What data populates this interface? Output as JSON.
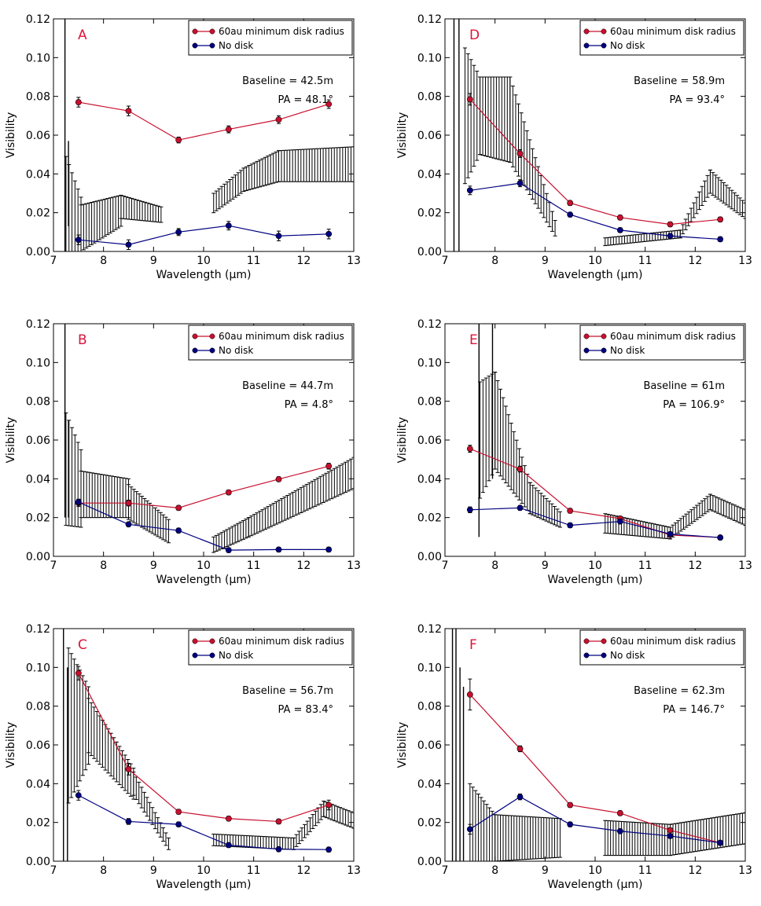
{
  "figure": {
    "xlabel": "Wavelength (μm)",
    "ylabel": "Visibility",
    "xlim": [
      7,
      13
    ],
    "ylim": [
      0,
      0.12
    ],
    "x_ticks": [
      "7",
      "8",
      "9",
      "10",
      "11",
      "12",
      "13"
    ],
    "y_ticks": [
      "0.00",
      "0.02",
      "0.04",
      "0.06",
      "0.08",
      "0.10",
      "0.12"
    ],
    "legend": [
      "60au minimum disk radius",
      "No disk"
    ],
    "colors": {
      "disk": "#c8102e",
      "nodisk": "#000080",
      "obs": "#000000",
      "letter": "#dc143c"
    }
  },
  "chart_data": [
    {
      "type": "line",
      "panel": "A",
      "baseline": "Baseline = 42.5m",
      "pa": "PA = 48.1°",
      "xlim": [
        7,
        13
      ],
      "ylim": [
        0,
        0.12
      ],
      "xlabel": "Wavelength (μm)",
      "ylabel": "Visibility",
      "series": [
        {
          "name": "60au minimum disk radius",
          "x": [
            7.5,
            8.5,
            9.5,
            10.5,
            11.5,
            12.5
          ],
          "y": [
            0.077,
            0.0725,
            0.0575,
            0.063,
            0.068,
            0.076
          ],
          "err": [
            0.0025,
            0.0025,
            0.0015,
            0.0018,
            0.002,
            0.0022
          ]
        },
        {
          "name": "No disk",
          "x": [
            7.5,
            8.5,
            9.5,
            10.5,
            11.5,
            12.5
          ],
          "y": [
            0.006,
            0.0035,
            0.01,
            0.0133,
            0.008,
            0.009
          ],
          "err": [
            0.0025,
            0.0025,
            0.0018,
            0.0022,
            0.0025,
            0.0025
          ]
        }
      ],
      "observed": {
        "segments": [
          {
            "x0": 7.25,
            "x1": 7.55,
            "y0": 0.018,
            "y1": 0.01,
            "err0": 0.031,
            "err1": 0.018
          },
          {
            "x0": 7.55,
            "x1": 8.35,
            "y0": 0.012,
            "y1": 0.021,
            "err0": 0.012,
            "err1": 0.008
          },
          {
            "x0": 8.35,
            "x1": 9.15,
            "y0": 0.023,
            "y1": 0.019,
            "err0": 0.006,
            "err1": 0.004
          },
          {
            "x0": 10.2,
            "x1": 10.8,
            "y0": 0.025,
            "y1": 0.037,
            "err0": 0.005,
            "err1": 0.006
          },
          {
            "x0": 10.8,
            "x1": 11.5,
            "y0": 0.037,
            "y1": 0.044,
            "err0": 0.006,
            "err1": 0.008
          },
          {
            "x0": 11.5,
            "x1": 13.0,
            "y0": 0.044,
            "y1": 0.045,
            "err0": 0.008,
            "err1": 0.009
          }
        ],
        "spikes": [
          {
            "x": 7.23,
            "y": 0.06,
            "err": 0.06
          },
          {
            "x": 7.3,
            "y": 0.035,
            "err": 0.022
          }
        ]
      }
    },
    {
      "type": "line",
      "panel": "B",
      "baseline": "Baseline = 44.7m",
      "pa": "PA = 4.8°",
      "xlim": [
        7,
        13
      ],
      "ylim": [
        0,
        0.12
      ],
      "xlabel": "Wavelength (μm)",
      "ylabel": "Visibility",
      "series": [
        {
          "name": "60au minimum disk radius",
          "x": [
            7.5,
            8.5,
            9.5,
            10.5,
            11.5,
            12.5
          ],
          "y": [
            0.0275,
            0.0275,
            0.025,
            0.033,
            0.0398,
            0.0465
          ],
          "err": [
            0.0018,
            0.0015,
            0.0012,
            0.0012,
            0.0012,
            0.0015
          ]
        },
        {
          "name": "No disk",
          "x": [
            7.5,
            8.5,
            9.5,
            10.5,
            11.5,
            12.5
          ],
          "y": [
            0.028,
            0.0165,
            0.0133,
            0.0032,
            0.0035,
            0.0035
          ],
          "err": [
            0.0015,
            0.0012,
            0.0012,
            0.0012,
            0.0012,
            0.0012
          ]
        }
      ],
      "observed": {
        "segments": [
          {
            "x0": 7.25,
            "x1": 7.55,
            "y0": 0.045,
            "y1": 0.035,
            "err0": 0.029,
            "err1": 0.02
          },
          {
            "x0": 7.55,
            "x1": 8.5,
            "y0": 0.032,
            "y1": 0.03,
            "err0": 0.012,
            "err1": 0.01
          },
          {
            "x0": 8.5,
            "x1": 9.3,
            "y0": 0.028,
            "y1": 0.013,
            "err0": 0.009,
            "err1": 0.006
          },
          {
            "x0": 10.2,
            "x1": 10.9,
            "y0": 0.006,
            "y1": 0.015,
            "err0": 0.004,
            "err1": 0.005
          },
          {
            "x0": 10.9,
            "x1": 13.0,
            "y0": 0.015,
            "y1": 0.043,
            "err0": 0.005,
            "err1": 0.008
          }
        ],
        "spikes": [
          {
            "x": 7.23,
            "y": 0.08,
            "err": 0.06
          },
          {
            "x": 7.3,
            "y": 0.045,
            "err": 0.025
          }
        ]
      }
    },
    {
      "type": "line",
      "panel": "C",
      "baseline": "Baseline = 56.7m",
      "pa": "PA = 83.4°",
      "xlim": [
        7,
        13
      ],
      "ylim": [
        0,
        0.12
      ],
      "xlabel": "Wavelength (μm)",
      "ylabel": "Visibility",
      "series": [
        {
          "name": "60au minimum disk radius",
          "x": [
            7.5,
            8.5,
            9.5,
            10.5,
            11.5,
            12.5
          ],
          "y": [
            0.097,
            0.0475,
            0.0255,
            0.022,
            0.0205,
            0.029
          ],
          "err": [
            0.0035,
            0.003,
            0.0012,
            0.0012,
            0.0012,
            0.0025
          ]
        },
        {
          "name": "No disk",
          "x": [
            7.5,
            8.5,
            9.5,
            10.5,
            11.5,
            12.5
          ],
          "y": [
            0.034,
            0.0205,
            0.019,
            0.0083,
            0.0062,
            0.006
          ],
          "err": [
            0.0025,
            0.0015,
            0.0012,
            0.0012,
            0.0012,
            0.0012
          ]
        }
      ],
      "observed": {
        "segments": [
          {
            "x0": 7.3,
            "x1": 7.7,
            "y0": 0.07,
            "y1": 0.07,
            "err0": 0.04,
            "err1": 0.02
          },
          {
            "x0": 7.7,
            "x1": 8.6,
            "y0": 0.07,
            "y1": 0.04,
            "err0": 0.014,
            "err1": 0.008
          },
          {
            "x0": 8.6,
            "x1": 9.3,
            "y0": 0.04,
            "y1": 0.009,
            "err0": 0.006,
            "err1": 0.003
          },
          {
            "x0": 10.2,
            "x1": 11.8,
            "y0": 0.011,
            "y1": 0.009,
            "err0": 0.003,
            "err1": 0.003
          },
          {
            "x0": 11.8,
            "x1": 12.4,
            "y0": 0.009,
            "y1": 0.027,
            "err0": 0.003,
            "err1": 0.004
          },
          {
            "x0": 12.4,
            "x1": 13.0,
            "y0": 0.027,
            "y1": 0.021,
            "err0": 0.004,
            "err1": 0.004
          }
        ],
        "spikes": [
          {
            "x": 7.2,
            "y": 0.08,
            "err": 0.08
          },
          {
            "x": 7.28,
            "y": 0.05,
            "err": 0.05
          }
        ]
      }
    },
    {
      "type": "line",
      "panel": "D",
      "baseline": "Baseline = 58.9m",
      "pa": "PA = 93.4°",
      "xlim": [
        7,
        13
      ],
      "ylim": [
        0,
        0.12
      ],
      "xlabel": "Wavelength (μm)",
      "ylabel": "Visibility",
      "series": [
        {
          "name": "60au minimum disk radius",
          "x": [
            7.5,
            8.5,
            9.5,
            10.5,
            11.5,
            12.5
          ],
          "y": [
            0.0785,
            0.0505,
            0.025,
            0.0175,
            0.014,
            0.0165
          ],
          "err": [
            0.003,
            0.002,
            0.0012,
            0.0012,
            0.0012,
            0.0012
          ]
        },
        {
          "name": "No disk",
          "x": [
            7.5,
            8.5,
            9.5,
            10.5,
            11.5,
            12.5
          ],
          "y": [
            0.0315,
            0.0352,
            0.019,
            0.011,
            0.008,
            0.0063
          ],
          "err": [
            0.0022,
            0.0018,
            0.0012,
            0.0012,
            0.0012,
            0.0012
          ]
        }
      ],
      "observed": {
        "segments": [
          {
            "x0": 7.4,
            "x1": 7.7,
            "y0": 0.07,
            "y1": 0.07,
            "err0": 0.035,
            "err1": 0.02
          },
          {
            "x0": 7.7,
            "x1": 8.3,
            "y0": 0.07,
            "y1": 0.068,
            "err0": 0.02,
            "err1": 0.022
          },
          {
            "x0": 8.3,
            "x1": 9.2,
            "y0": 0.068,
            "y1": 0.012,
            "err0": 0.022,
            "err1": 0.004
          },
          {
            "x0": 10.2,
            "x1": 11.7,
            "y0": 0.005,
            "y1": 0.009,
            "err0": 0.002,
            "err1": 0.002
          },
          {
            "x0": 11.7,
            "x1": 12.3,
            "y0": 0.009,
            "y1": 0.036,
            "err0": 0.002,
            "err1": 0.006
          },
          {
            "x0": 12.3,
            "x1": 13.0,
            "y0": 0.036,
            "y1": 0.021,
            "err0": 0.006,
            "err1": 0.004
          }
        ],
        "spikes": [
          {
            "x": 7.18,
            "y": 0.07,
            "err": 0.07
          },
          {
            "x": 7.28,
            "y": 0.06,
            "err": 0.06
          }
        ]
      }
    },
    {
      "type": "line",
      "panel": "E",
      "baseline": "Baseline = 61m",
      "pa": "PA = 106.9°",
      "xlim": [
        7,
        13
      ],
      "ylim": [
        0,
        0.12
      ],
      "xlabel": "Wavelength (μm)",
      "ylabel": "Visibility",
      "series": [
        {
          "name": "60au minimum disk radius",
          "x": [
            7.5,
            8.5,
            9.5,
            10.5,
            11.5,
            12.5
          ],
          "y": [
            0.0555,
            0.045,
            0.0235,
            0.0195,
            0.011,
            0.0097
          ],
          "err": [
            0.0018,
            0.0015,
            0.0012,
            0.0012,
            0.001,
            0.001
          ]
        },
        {
          "name": "No disk",
          "x": [
            7.5,
            8.5,
            9.5,
            10.5,
            11.5,
            12.5
          ],
          "y": [
            0.024,
            0.025,
            0.016,
            0.018,
            0.0115,
            0.0097
          ],
          "err": [
            0.0015,
            0.0012,
            0.0012,
            0.0012,
            0.001,
            0.001
          ]
        }
      ],
      "observed": {
        "segments": [
          {
            "x0": 7.7,
            "x1": 8.0,
            "y0": 0.06,
            "y1": 0.07,
            "err0": 0.03,
            "err1": 0.025
          },
          {
            "x0": 8.0,
            "x1": 8.7,
            "y0": 0.07,
            "y1": 0.03,
            "err0": 0.025,
            "err1": 0.008
          },
          {
            "x0": 8.7,
            "x1": 9.3,
            "y0": 0.03,
            "y1": 0.019,
            "err0": 0.008,
            "err1": 0.004
          },
          {
            "x0": 10.2,
            "x1": 11.5,
            "y0": 0.017,
            "y1": 0.012,
            "err0": 0.005,
            "err1": 0.003
          },
          {
            "x0": 11.5,
            "x1": 12.3,
            "y0": 0.012,
            "y1": 0.028,
            "err0": 0.003,
            "err1": 0.004
          },
          {
            "x0": 12.3,
            "x1": 13.0,
            "y0": 0.028,
            "y1": 0.02,
            "err0": 0.004,
            "err1": 0.004
          }
        ],
        "spikes": [
          {
            "x": 7.68,
            "y": 0.07,
            "err": 0.06
          },
          {
            "x": 7.95,
            "y": 0.08,
            "err": 0.04
          }
        ]
      }
    },
    {
      "type": "line",
      "panel": "F",
      "baseline": "Baseline = 62.3m",
      "pa": "PA = 146.7°",
      "xlim": [
        7,
        13
      ],
      "ylim": [
        0,
        0.12
      ],
      "xlabel": "Wavelength (μm)",
      "ylabel": "Visibility",
      "series": [
        {
          "name": "60au minimum disk radius",
          "x": [
            7.5,
            8.5,
            9.5,
            10.5,
            11.5,
            12.5
          ],
          "y": [
            0.086,
            0.058,
            0.029,
            0.0248,
            0.016,
            0.0095
          ],
          "err": [
            0.008,
            0.0015,
            0.0012,
            0.0012,
            0.001,
            0.001
          ]
        },
        {
          "name": "No disk",
          "x": [
            7.5,
            8.5,
            9.5,
            10.5,
            11.5,
            12.5
          ],
          "y": [
            0.0165,
            0.0332,
            0.019,
            0.0155,
            0.013,
            0.0095
          ],
          "err": [
            0.0025,
            0.0015,
            0.0012,
            0.0012,
            0.001,
            0.001
          ]
        }
      ],
      "observed": {
        "segments": [
          {
            "x0": 7.5,
            "x1": 8.0,
            "y0": 0.02,
            "y1": 0.012,
            "err0": 0.02,
            "err1": 0.012
          },
          {
            "x0": 8.0,
            "x1": 9.3,
            "y0": 0.012,
            "y1": 0.012,
            "err0": 0.012,
            "err1": 0.01
          },
          {
            "x0": 10.2,
            "x1": 11.5,
            "y0": 0.012,
            "y1": 0.011,
            "err0": 0.009,
            "err1": 0.008
          },
          {
            "x0": 11.5,
            "x1": 13.0,
            "y0": 0.011,
            "y1": 0.017,
            "err0": 0.008,
            "err1": 0.008
          }
        ],
        "spikes": [
          {
            "x": 7.15,
            "y": 0.08,
            "err": 0.08
          },
          {
            "x": 7.22,
            "y": 0.06,
            "err": 0.06
          },
          {
            "x": 7.3,
            "y": 0.05,
            "err": 0.05
          },
          {
            "x": 7.37,
            "y": 0.045,
            "err": 0.045
          }
        ]
      }
    }
  ]
}
